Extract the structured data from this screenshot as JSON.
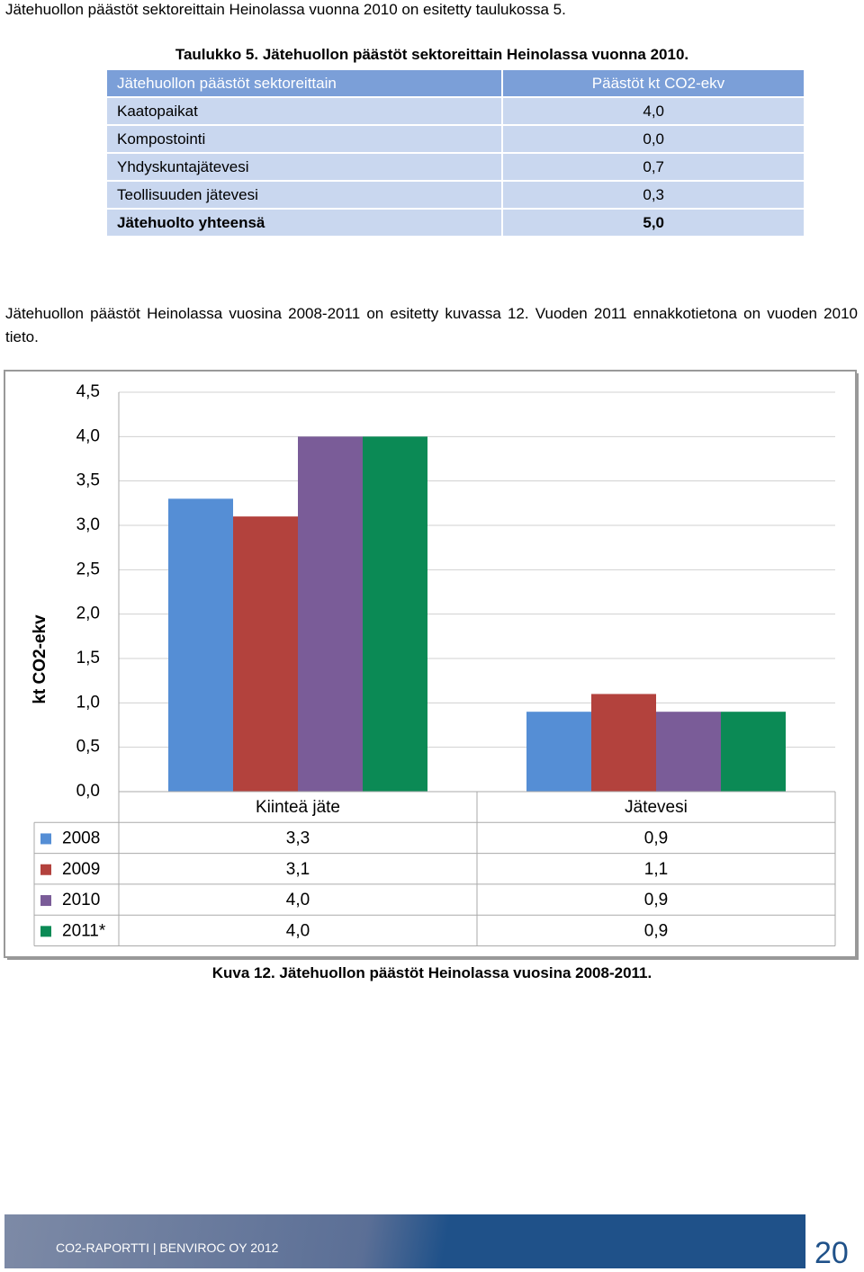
{
  "intro": "Jätehuollon päästöt sektoreittain Heinolassa vuonna 2010 on esitetty taulukossa 5.",
  "table": {
    "caption": "Taulukko 5. Jätehuollon päästöt sektoreittain Heinolassa vuonna 2010.",
    "header": [
      "Jätehuollon päästöt sektoreittain",
      "Päästöt kt CO2-ekv"
    ],
    "rows": [
      [
        "Kaatopaikat",
        "4,0"
      ],
      [
        "Kompostointi",
        "0,0"
      ],
      [
        "Yhdyskuntajätevesi",
        "0,7"
      ],
      [
        "Teollisuuden jätevesi",
        "0,3"
      ],
      [
        "Jätehuolto yhteensä",
        "5,0"
      ]
    ]
  },
  "paragraph": "Jätehuollon päästöt Heinolassa vuosina 2008-2011 on esitetty kuvassa 12. Vuoden 2011 ennakkotietona on vuoden 2010 tieto.",
  "chart_data": {
    "type": "bar",
    "ylabel": "kt CO2-ekv",
    "categories": [
      "Kiinteä jäte",
      "Jätevesi"
    ],
    "series": [
      {
        "name": "2008",
        "color": "#558ed5",
        "values": [
          3.3,
          0.9
        ],
        "value_labels": [
          "3,3",
          "0,9"
        ]
      },
      {
        "name": "2009",
        "color": "#b3423d",
        "values": [
          3.1,
          1.1
        ],
        "value_labels": [
          "3,1",
          "1,1"
        ]
      },
      {
        "name": "2010",
        "color": "#7a5c98",
        "values": [
          4.0,
          0.9
        ],
        "value_labels": [
          "4,0",
          "0,9"
        ]
      },
      {
        "name": "2011*",
        "color": "#0b8a55",
        "values": [
          4.0,
          0.9
        ],
        "value_labels": [
          "4,0",
          "0,9"
        ]
      }
    ],
    "ylim": [
      0,
      4.5
    ],
    "yticks": [
      {
        "value": 0,
        "label": "0,0"
      },
      {
        "value": 0.5,
        "label": "0,5"
      },
      {
        "value": 1,
        "label": "1,0"
      },
      {
        "value": 1.5,
        "label": "1,5"
      },
      {
        "value": 2,
        "label": "2,0"
      },
      {
        "value": 2.5,
        "label": "2,5"
      },
      {
        "value": 3,
        "label": "3,0"
      },
      {
        "value": 3.5,
        "label": "3,5"
      },
      {
        "value": 4,
        "label": "4,0"
      },
      {
        "value": 4.5,
        "label": "4,5"
      }
    ],
    "grid": true
  },
  "figure_caption": "Kuva 12. Jätehuollon päästöt Heinolassa vuosina 2008-2011.",
  "footer": {
    "text": "CO2-RAPORTTI | BENVIROC OY 2012",
    "page_number": "20"
  }
}
